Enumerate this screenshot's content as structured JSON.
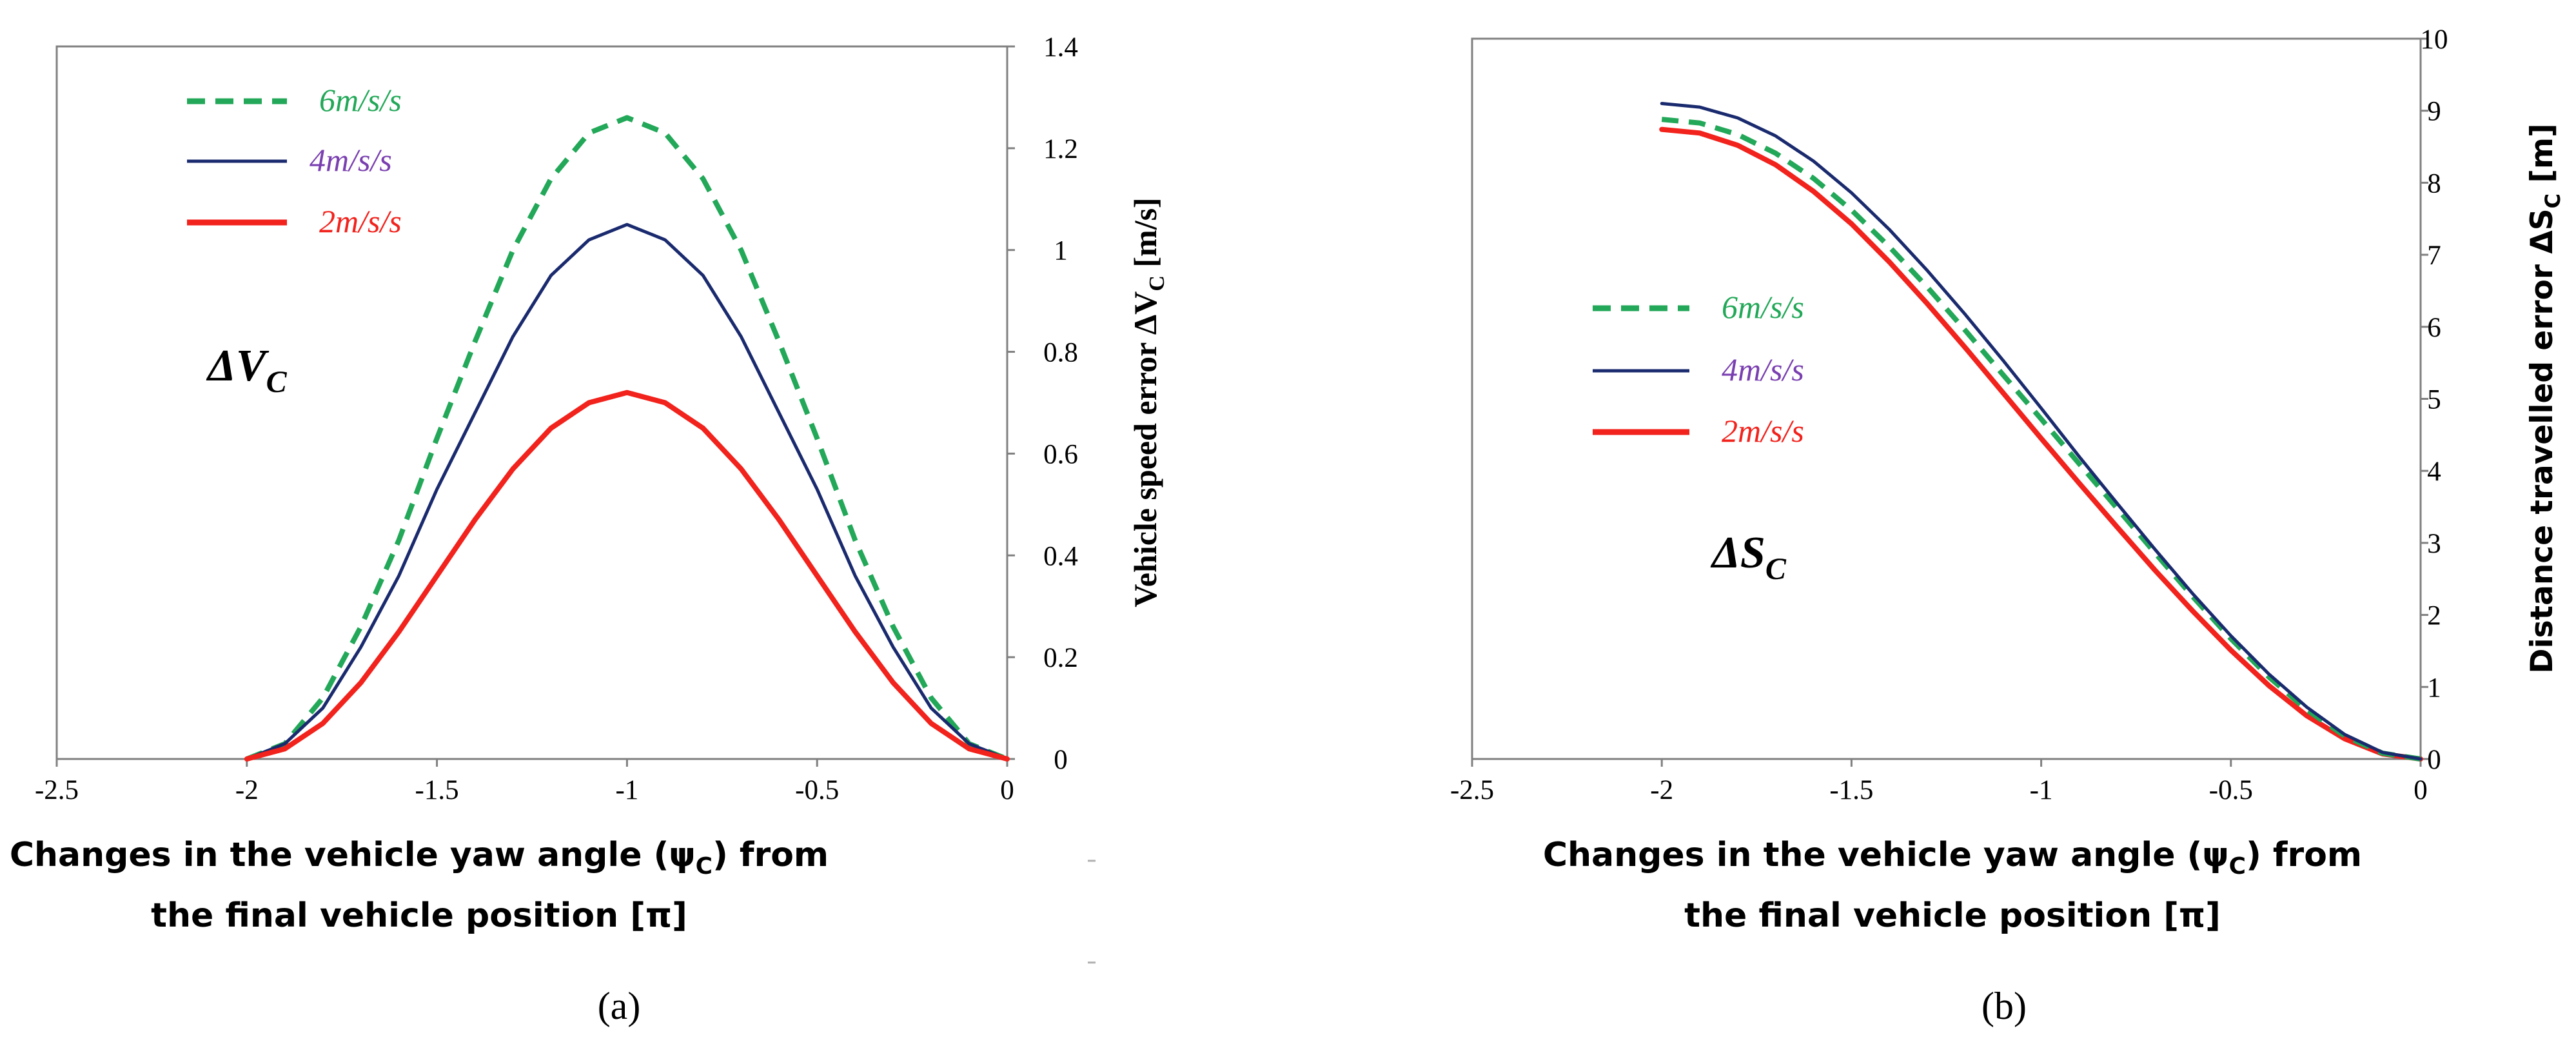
{
  "colors": {
    "s6": "#22a858",
    "s4": "#1a2a6e",
    "s2": "#f2221c",
    "legend_s4_text": "#7a3fb0"
  },
  "chart_data": [
    {
      "id": "a",
      "type": "line",
      "panel_label": "(a)",
      "annotation": "ΔV",
      "annotation_sub": "C",
      "xlabel_line1": "Changes in the vehicle yaw angle (ψ",
      "xlabel_sub": "C",
      "xlabel_line1_end": ") from",
      "xlabel_line2": "the final vehicle position  [π]",
      "ylabel": "Vehicle speed error ΔV",
      "ylabel_sub": "C",
      "ylabel_end": "  [m/s]",
      "xlim": [
        -2.5,
        0
      ],
      "ylim": [
        0,
        1.4
      ],
      "xticks": [
        -2.5,
        -2,
        -1.5,
        -1,
        -0.5,
        0
      ],
      "xtick_labels": [
        "-2.5",
        "-2",
        "-1.5",
        "-1",
        "-0.5",
        "0"
      ],
      "yticks": [
        0,
        0.2,
        0.4,
        0.6,
        0.8,
        1,
        1.2,
        1.4
      ],
      "ytick_labels": [
        "0",
        "0.2",
        "0.4",
        "0.6",
        "0.8",
        "1",
        "1.2",
        "1.4"
      ],
      "legend": [
        "6m/s/s",
        "4m/s/s",
        "2m/s/s"
      ],
      "series": [
        {
          "name": "6m/s/s",
          "peak": 1.26,
          "style": "dashed",
          "x": [
            -2,
            -1.9,
            -1.8,
            -1.7,
            -1.6,
            -1.5,
            -1.4,
            -1.3,
            -1.2,
            -1.1,
            -1,
            -0.9,
            -0.8,
            -0.7,
            -0.6,
            -0.5,
            -0.4,
            -0.3,
            -0.2,
            -0.1,
            0
          ],
          "y": [
            0,
            0.03,
            0.12,
            0.26,
            0.43,
            0.63,
            0.82,
            1.0,
            1.14,
            1.23,
            1.26,
            1.23,
            1.14,
            1.0,
            0.82,
            0.63,
            0.43,
            0.26,
            0.12,
            0.03,
            0
          ]
        },
        {
          "name": "4m/s/s",
          "peak": 1.05,
          "style": "solid",
          "x": [
            -2,
            -1.9,
            -1.8,
            -1.7,
            -1.6,
            -1.5,
            -1.4,
            -1.3,
            -1.2,
            -1.1,
            -1,
            -0.9,
            -0.8,
            -0.7,
            -0.6,
            -0.5,
            -0.4,
            -0.3,
            -0.2,
            -0.1,
            0
          ],
          "y": [
            0,
            0.03,
            0.1,
            0.22,
            0.36,
            0.53,
            0.68,
            0.83,
            0.95,
            1.02,
            1.05,
            1.02,
            0.95,
            0.83,
            0.68,
            0.53,
            0.36,
            0.22,
            0.1,
            0.03,
            0
          ]
        },
        {
          "name": "2m/s/s",
          "peak": 0.72,
          "style": "solid",
          "x": [
            -2,
            -1.9,
            -1.8,
            -1.7,
            -1.6,
            -1.5,
            -1.4,
            -1.3,
            -1.2,
            -1.1,
            -1,
            -0.9,
            -0.8,
            -0.7,
            -0.6,
            -0.5,
            -0.4,
            -0.3,
            -0.2,
            -0.1,
            0
          ],
          "y": [
            0,
            0.02,
            0.07,
            0.15,
            0.25,
            0.36,
            0.47,
            0.57,
            0.65,
            0.7,
            0.72,
            0.7,
            0.65,
            0.57,
            0.47,
            0.36,
            0.25,
            0.15,
            0.07,
            0.02,
            0
          ]
        }
      ]
    },
    {
      "id": "b",
      "type": "line",
      "panel_label": "(b)",
      "annotation": "ΔS",
      "annotation_sub": "C",
      "xlabel_line1": "Changes in the vehicle yaw angle (ψ",
      "xlabel_sub": "C",
      "xlabel_line1_end": ") from",
      "xlabel_line2": "the final vehicle position  [π]",
      "ylabel": "Distance travelled error ΔS",
      "ylabel_sub": "C",
      "ylabel_end": " [m]",
      "xlim": [
        -2.5,
        0
      ],
      "ylim": [
        0,
        10
      ],
      "xticks": [
        -2.5,
        -2,
        -1.5,
        -1,
        -0.5,
        0
      ],
      "xtick_labels": [
        "-2.5",
        "-2",
        "-1.5",
        "-1",
        "-0.5",
        "0"
      ],
      "yticks": [
        0,
        1,
        2,
        3,
        4,
        5,
        6,
        7,
        8,
        9,
        10
      ],
      "ytick_labels": [
        "0",
        "1",
        "2",
        "3",
        "4",
        "5",
        "6",
        "7",
        "8",
        "9",
        "10"
      ],
      "legend": [
        "6m/s/s",
        "4m/s/s",
        "2m/s/s"
      ],
      "series": [
        {
          "name": "6m/s/s",
          "start": 8.88,
          "style": "dashed",
          "x": [
            -2,
            -1.9,
            -1.8,
            -1.7,
            -1.6,
            -1.5,
            -1.4,
            -1.3,
            -1.2,
            -1.1,
            -1,
            -0.9,
            -0.8,
            -0.7,
            -0.6,
            -0.5,
            -0.4,
            -0.3,
            -0.2,
            -0.1,
            0
          ],
          "y": [
            8.88,
            8.83,
            8.67,
            8.41,
            8.06,
            7.62,
            7.11,
            6.55,
            5.95,
            5.33,
            4.72,
            4.1,
            3.48,
            2.86,
            2.25,
            1.67,
            1.14,
            0.68,
            0.32,
            0.08,
            0
          ]
        },
        {
          "name": "4m/s/s",
          "start": 9.1,
          "style": "solid",
          "x": [
            -2,
            -1.9,
            -1.8,
            -1.7,
            -1.6,
            -1.5,
            -1.4,
            -1.3,
            -1.2,
            -1.1,
            -1,
            -0.9,
            -0.8,
            -0.7,
            -0.6,
            -0.5,
            -0.4,
            -0.3,
            -0.2,
            -0.1,
            0
          ],
          "y": [
            9.1,
            9.05,
            8.9,
            8.65,
            8.3,
            7.86,
            7.35,
            6.78,
            6.17,
            5.53,
            4.87,
            4.2,
            3.55,
            2.91,
            2.29,
            1.71,
            1.18,
            0.72,
            0.34,
            0.09,
            0
          ]
        },
        {
          "name": "2m/s/s",
          "start": 8.74,
          "style": "solid",
          "x": [
            -2,
            -1.9,
            -1.8,
            -1.7,
            -1.6,
            -1.5,
            -1.4,
            -1.3,
            -1.2,
            -1.1,
            -1,
            -0.9,
            -0.8,
            -0.7,
            -0.6,
            -0.5,
            -0.4,
            -0.3,
            -0.2,
            -0.1,
            0
          ],
          "y": [
            8.74,
            8.69,
            8.52,
            8.25,
            7.88,
            7.43,
            6.9,
            6.32,
            5.71,
            5.08,
            4.45,
            3.83,
            3.22,
            2.62,
            2.05,
            1.51,
            1.02,
            0.6,
            0.28,
            0.07,
            0
          ]
        }
      ]
    }
  ]
}
